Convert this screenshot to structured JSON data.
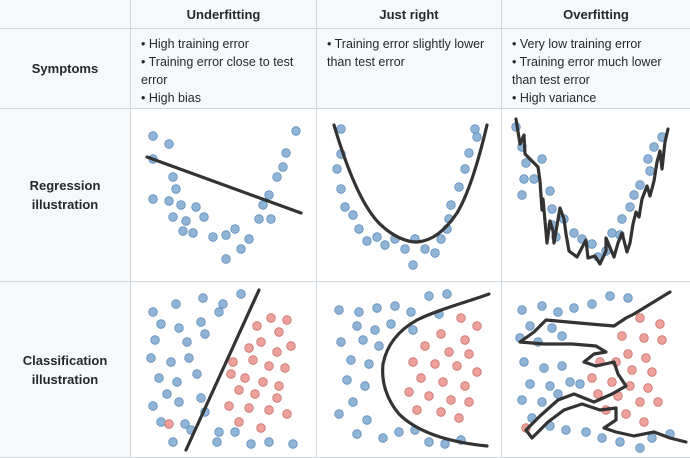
{
  "header": {
    "corner": "",
    "columns": [
      "Underfitting",
      "Just right",
      "Overfitting"
    ]
  },
  "rows": {
    "symptoms": {
      "label": "Symptoms",
      "cells": [
        [
          "High training error",
          "Training error close to test error",
          "High bias"
        ],
        [
          "Training error slightly lower than test error"
        ],
        [
          "Very low training error",
          "Training error much lower than test error",
          "High variance"
        ]
      ]
    },
    "regression": {
      "label": "Regression illustration"
    },
    "classification": {
      "label": "Classification illustration"
    }
  },
  "colors": {
    "header_bg": "#f6f8fa",
    "border": "#d0d7de",
    "class_a": "#8fb4d6",
    "class_b": "#eea09a",
    "model_line": "#333333"
  }
}
